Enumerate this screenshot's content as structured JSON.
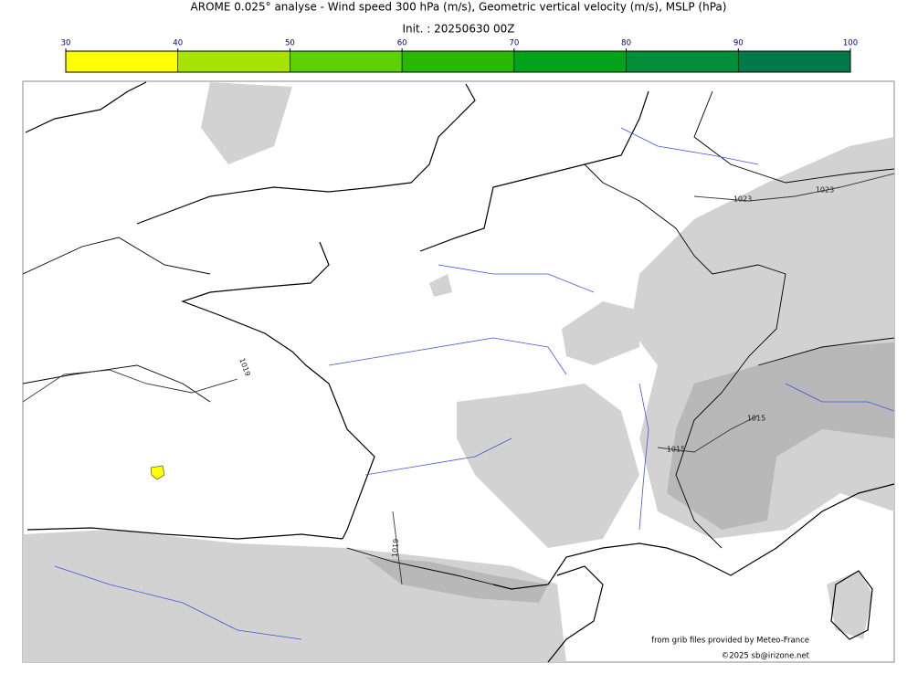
{
  "header": {
    "title": "AROME 0.025° analyse - Wind speed 300 hPa (m/s), Geometric vertical velocity (m/s), MSLP (hPa)",
    "subtitle": "Init. : 20250630 00Z"
  },
  "colorbar": {
    "ticks": [
      30,
      40,
      50,
      60,
      70,
      80,
      90,
      100
    ],
    "colors": [
      "#ffff00",
      "#a6e400",
      "#5dd000",
      "#28b800",
      "#00a31a",
      "#008f38",
      "#007a4a"
    ]
  },
  "contour_labels": [
    "1023",
    "1023",
    "1019",
    "1015",
    "1015",
    "1019"
  ],
  "credits": [
    "from grib files provided by Meteo-France",
    "©2025 sb@irizone.net"
  ]
}
